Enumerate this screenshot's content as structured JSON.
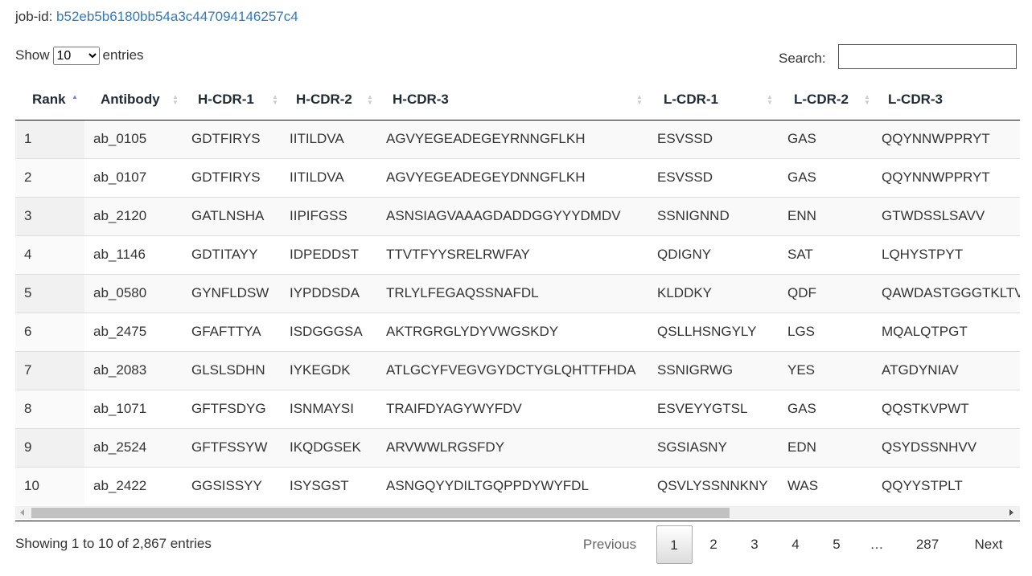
{
  "job": {
    "label": "job-id:",
    "value": "b52eb5b6180bb54a3c447094146257c4"
  },
  "length": {
    "prefix": "Show",
    "selected": "10",
    "suffix": "entries"
  },
  "search": {
    "label": "Search:"
  },
  "table": {
    "headers": [
      "Rank",
      "Antibody",
      "H-CDR-1",
      "H-CDR-2",
      "H-CDR-3",
      "L-CDR-1",
      "L-CDR-2",
      "L-CDR-3"
    ],
    "rows": [
      [
        "1",
        "ab_0105",
        "GDTFIRYS",
        "IITILDVA",
        "AGVYEGEADEGEYRNNGFLKH",
        "ESVSSD",
        "GAS",
        "QQYNNWPPRYT"
      ],
      [
        "2",
        "ab_0107",
        "GDTFIRYS",
        "IITILDVA",
        "AGVYEGEADEGEYDNNGFLKH",
        "ESVSSD",
        "GAS",
        "QQYNNWPPRYT"
      ],
      [
        "3",
        "ab_2120",
        "GATLNSHA",
        "IIPIFGSS",
        "ASNSIAGVAAAGDADDGGYYYDMDV",
        "SSNIGNND",
        "ENN",
        "GTWDSSLSAVV"
      ],
      [
        "4",
        "ab_1146",
        "GDTITAYY",
        "IDPEDDST",
        "TTVTFYYSRELRWFAY",
        "QDIGNY",
        "SAT",
        "LQHYSTPYT"
      ],
      [
        "5",
        "ab_0580",
        "GYNFLDSW",
        "IYPDDSDA",
        "TRLYLFEGAQSSNAFDL",
        "KLDDKY",
        "QDF",
        "QAWDASTGGGTKLTV"
      ],
      [
        "6",
        "ab_2475",
        "GFAFTTYA",
        "ISDGGGSA",
        "AKTRGRGLYDYVWGSKDY",
        "QSLLHSNGYLY",
        "LGS",
        "MQALQTPGT"
      ],
      [
        "7",
        "ab_2083",
        "GLSLSDHN",
        "IYKEGDK",
        "ATLGCYFVEGVGYDCTYGLQHTTFHDA",
        "SSNIGRWG",
        "YES",
        "ATGDYNIAV"
      ],
      [
        "8",
        "ab_1071",
        "GFTFSDYG",
        "ISNMAYSI",
        "TRAIFDYAGYWYFDV",
        "ESVEYYGTSL",
        "GAS",
        "QQSTKVPWT"
      ],
      [
        "9",
        "ab_2524",
        "GFTFSSYW",
        "IKQDGSEK",
        "ARVWWLRGSFDY",
        "SGSIASNY",
        "EDN",
        "QSYDSSNHVV"
      ],
      [
        "10",
        "ab_2422",
        "GGSISSYY",
        "ISYSGST",
        "ASNGQYYDILTGQPPDYWYFDL",
        "QSVLYSSNNKNY",
        "WAS",
        "QQYYSTPLT"
      ]
    ]
  },
  "info": "Showing 1 to 10 of 2,867 entries",
  "pagination": {
    "previous": "Previous",
    "pages": [
      "1",
      "2",
      "3",
      "4",
      "5",
      "…",
      "287"
    ],
    "next": "Next"
  }
}
